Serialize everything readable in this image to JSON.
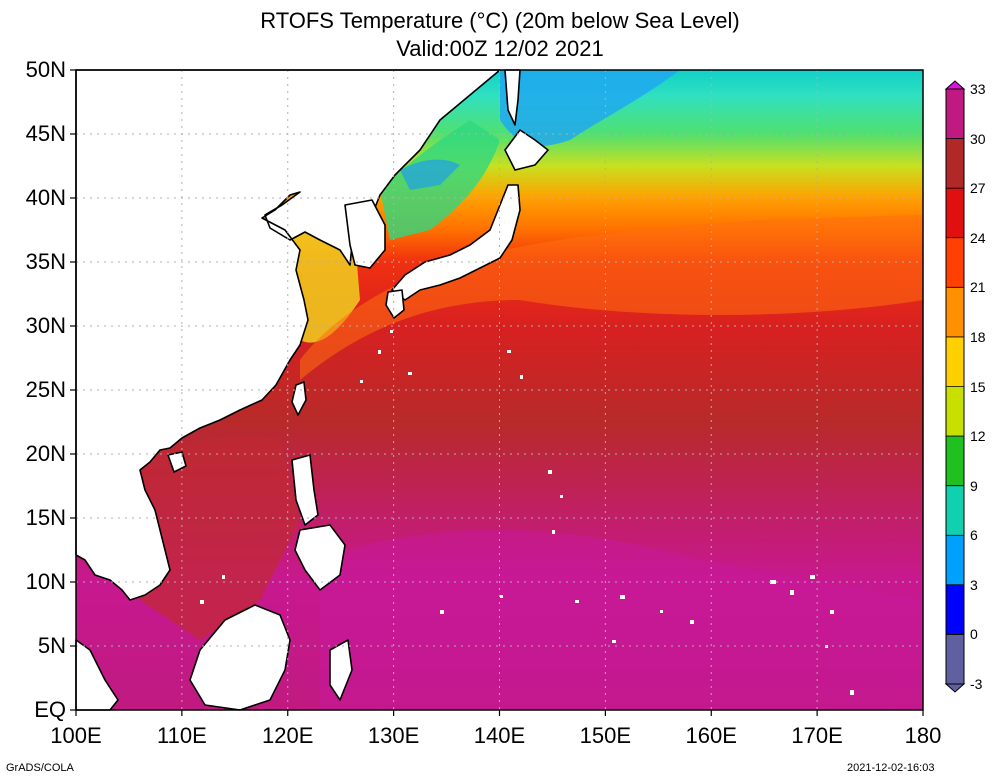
{
  "title_line1": "RTOFS Temperature (°C) (20m below Sea Level)",
  "title_line2": "Valid:00Z 12/02 2021",
  "lat_labels": [
    "50N",
    "45N",
    "40N",
    "35N",
    "30N",
    "25N",
    "20N",
    "15N",
    "10N",
    "5N",
    "EQ"
  ],
  "lon_labels": [
    "100E",
    "110E",
    "120E",
    "130E",
    "140E",
    "150E",
    "160E",
    "170E",
    "180"
  ],
  "colorbar": {
    "labels": [
      "33",
      "30",
      "27",
      "24",
      "21",
      "18",
      "15",
      "12",
      "9",
      "6",
      "3",
      "0",
      "-3"
    ],
    "colors": [
      "#e010e0",
      "#c01a80",
      "#b02828",
      "#e01010",
      "#ff4000",
      "#ff9000",
      "#ffd000",
      "#c8e000",
      "#20c020",
      "#10d0b0",
      "#00a0ff",
      "#0000ff",
      "#6060a0"
    ]
  },
  "footer_left": "GrADS/COLA",
  "footer_right": "2021-12-02-16:03",
  "colors": {
    "land": "#ffffff",
    "coast": "#000000",
    "grid": "#b0b0b0"
  }
}
